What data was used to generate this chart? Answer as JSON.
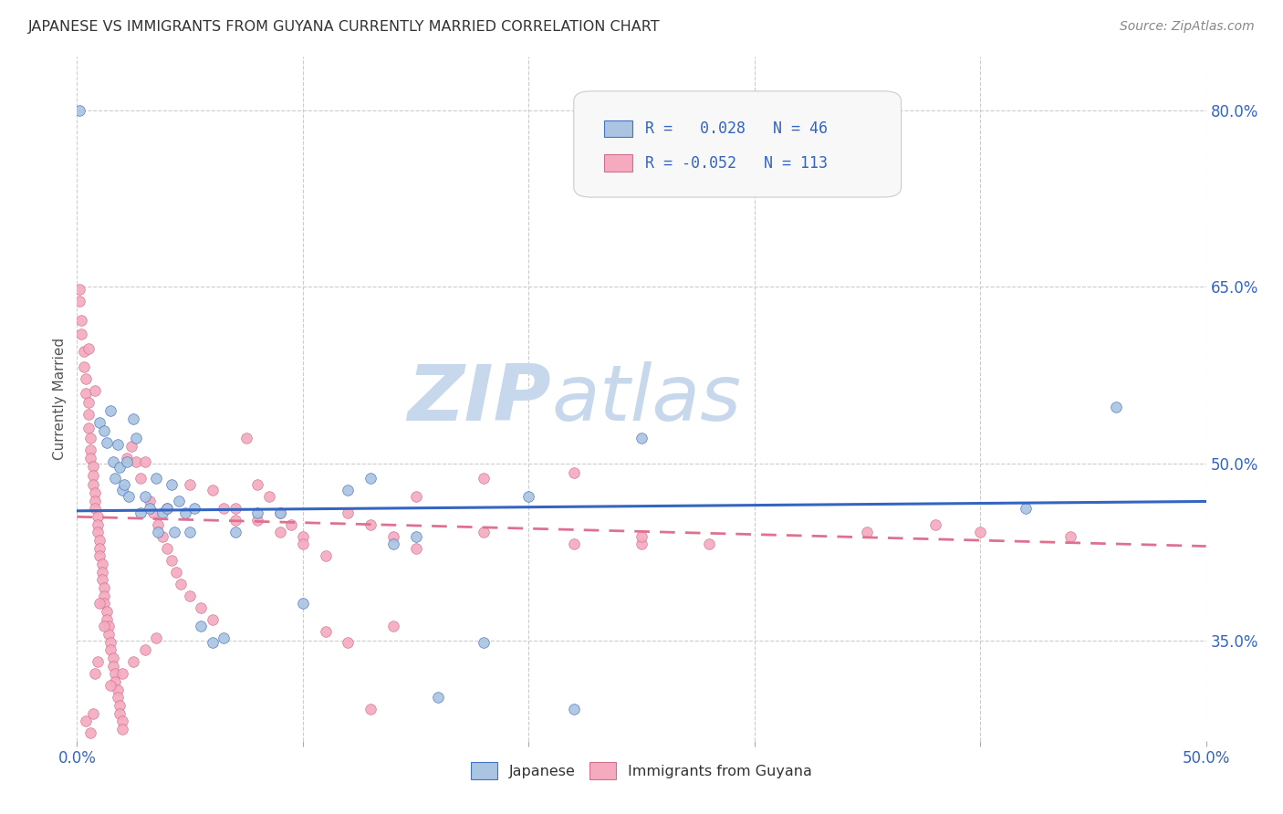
{
  "title": "JAPANESE VS IMMIGRANTS FROM GUYANA CURRENTLY MARRIED CORRELATION CHART",
  "source": "Source: ZipAtlas.com",
  "ylabel": "Currently Married",
  "ylabel_right_labels": [
    "80.0%",
    "65.0%",
    "50.0%",
    "35.0%"
  ],
  "ylabel_right_values": [
    0.8,
    0.65,
    0.5,
    0.35
  ],
  "xlim": [
    0.0,
    0.5
  ],
  "ylim": [
    0.265,
    0.845
  ],
  "legend_r_japanese": " 0.028",
  "legend_n_japanese": "46",
  "legend_r_guyana": "-0.052",
  "legend_n_guyana": "113",
  "japanese_color": "#aac4e2",
  "guyana_color": "#f5aabf",
  "trendline_japanese_color": "#3465c0",
  "trendline_guyana_color": "#e07090",
  "watermark_text_1": "ZIP",
  "watermark_text_2": "atlas",
  "watermark_color": "#c8d8ec",
  "background_color": "#ffffff",
  "grid_color": "#cccccc",
  "japanese_points": [
    [
      0.001,
      0.8
    ],
    [
      0.01,
      0.535
    ],
    [
      0.012,
      0.528
    ],
    [
      0.013,
      0.518
    ],
    [
      0.015,
      0.545
    ],
    [
      0.016,
      0.502
    ],
    [
      0.017,
      0.488
    ],
    [
      0.018,
      0.516
    ],
    [
      0.019,
      0.497
    ],
    [
      0.02,
      0.478
    ],
    [
      0.021,
      0.482
    ],
    [
      0.022,
      0.502
    ],
    [
      0.023,
      0.472
    ],
    [
      0.025,
      0.538
    ],
    [
      0.026,
      0.522
    ],
    [
      0.028,
      0.458
    ],
    [
      0.03,
      0.472
    ],
    [
      0.032,
      0.462
    ],
    [
      0.035,
      0.488
    ],
    [
      0.036,
      0.442
    ],
    [
      0.038,
      0.458
    ],
    [
      0.04,
      0.462
    ],
    [
      0.042,
      0.482
    ],
    [
      0.043,
      0.442
    ],
    [
      0.045,
      0.468
    ],
    [
      0.048,
      0.458
    ],
    [
      0.05,
      0.442
    ],
    [
      0.052,
      0.462
    ],
    [
      0.055,
      0.362
    ],
    [
      0.06,
      0.348
    ],
    [
      0.065,
      0.352
    ],
    [
      0.07,
      0.442
    ],
    [
      0.08,
      0.458
    ],
    [
      0.09,
      0.458
    ],
    [
      0.1,
      0.382
    ],
    [
      0.12,
      0.478
    ],
    [
      0.13,
      0.488
    ],
    [
      0.14,
      0.432
    ],
    [
      0.15,
      0.438
    ],
    [
      0.16,
      0.302
    ],
    [
      0.18,
      0.348
    ],
    [
      0.2,
      0.472
    ],
    [
      0.22,
      0.292
    ],
    [
      0.25,
      0.522
    ],
    [
      0.42,
      0.462
    ],
    [
      0.46,
      0.548
    ]
  ],
  "guyana_points": [
    [
      0.001,
      0.648
    ],
    [
      0.001,
      0.638
    ],
    [
      0.002,
      0.622
    ],
    [
      0.002,
      0.61
    ],
    [
      0.003,
      0.595
    ],
    [
      0.003,
      0.582
    ],
    [
      0.004,
      0.572
    ],
    [
      0.004,
      0.56
    ],
    [
      0.005,
      0.552
    ],
    [
      0.005,
      0.542
    ],
    [
      0.005,
      0.53
    ],
    [
      0.006,
      0.522
    ],
    [
      0.006,
      0.512
    ],
    [
      0.006,
      0.505
    ],
    [
      0.007,
      0.498
    ],
    [
      0.007,
      0.49
    ],
    [
      0.007,
      0.482
    ],
    [
      0.008,
      0.475
    ],
    [
      0.008,
      0.468
    ],
    [
      0.008,
      0.462
    ],
    [
      0.009,
      0.455
    ],
    [
      0.009,
      0.448
    ],
    [
      0.009,
      0.442
    ],
    [
      0.01,
      0.435
    ],
    [
      0.01,
      0.428
    ],
    [
      0.01,
      0.422
    ],
    [
      0.011,
      0.415
    ],
    [
      0.011,
      0.408
    ],
    [
      0.011,
      0.402
    ],
    [
      0.012,
      0.395
    ],
    [
      0.012,
      0.388
    ],
    [
      0.012,
      0.382
    ],
    [
      0.013,
      0.375
    ],
    [
      0.013,
      0.368
    ],
    [
      0.014,
      0.362
    ],
    [
      0.014,
      0.355
    ],
    [
      0.015,
      0.348
    ],
    [
      0.015,
      0.342
    ],
    [
      0.016,
      0.335
    ],
    [
      0.016,
      0.328
    ],
    [
      0.017,
      0.322
    ],
    [
      0.017,
      0.315
    ],
    [
      0.018,
      0.308
    ],
    [
      0.018,
      0.302
    ],
    [
      0.019,
      0.295
    ],
    [
      0.019,
      0.288
    ],
    [
      0.02,
      0.282
    ],
    [
      0.02,
      0.275
    ],
    [
      0.022,
      0.505
    ],
    [
      0.024,
      0.515
    ],
    [
      0.026,
      0.502
    ],
    [
      0.028,
      0.488
    ],
    [
      0.03,
      0.502
    ],
    [
      0.032,
      0.468
    ],
    [
      0.034,
      0.458
    ],
    [
      0.036,
      0.448
    ],
    [
      0.038,
      0.438
    ],
    [
      0.04,
      0.428
    ],
    [
      0.042,
      0.418
    ],
    [
      0.044,
      0.408
    ],
    [
      0.046,
      0.398
    ],
    [
      0.05,
      0.388
    ],
    [
      0.055,
      0.378
    ],
    [
      0.06,
      0.368
    ],
    [
      0.065,
      0.462
    ],
    [
      0.07,
      0.452
    ],
    [
      0.075,
      0.522
    ],
    [
      0.08,
      0.482
    ],
    [
      0.085,
      0.472
    ],
    [
      0.09,
      0.458
    ],
    [
      0.095,
      0.448
    ],
    [
      0.1,
      0.438
    ],
    [
      0.11,
      0.358
    ],
    [
      0.12,
      0.348
    ],
    [
      0.13,
      0.292
    ],
    [
      0.14,
      0.362
    ],
    [
      0.15,
      0.472
    ],
    [
      0.18,
      0.488
    ],
    [
      0.22,
      0.492
    ],
    [
      0.25,
      0.432
    ],
    [
      0.004,
      0.282
    ],
    [
      0.006,
      0.272
    ],
    [
      0.007,
      0.288
    ],
    [
      0.008,
      0.322
    ],
    [
      0.009,
      0.332
    ],
    [
      0.01,
      0.382
    ],
    [
      0.012,
      0.362
    ],
    [
      0.015,
      0.312
    ],
    [
      0.02,
      0.322
    ],
    [
      0.025,
      0.332
    ],
    [
      0.03,
      0.342
    ],
    [
      0.035,
      0.352
    ],
    [
      0.04,
      0.462
    ],
    [
      0.05,
      0.482
    ],
    [
      0.06,
      0.478
    ],
    [
      0.07,
      0.462
    ],
    [
      0.08,
      0.452
    ],
    [
      0.09,
      0.442
    ],
    [
      0.1,
      0.432
    ],
    [
      0.11,
      0.422
    ],
    [
      0.12,
      0.458
    ],
    [
      0.13,
      0.448
    ],
    [
      0.14,
      0.438
    ],
    [
      0.15,
      0.428
    ],
    [
      0.18,
      0.442
    ],
    [
      0.22,
      0.432
    ],
    [
      0.25,
      0.438
    ],
    [
      0.28,
      0.432
    ],
    [
      0.35,
      0.442
    ],
    [
      0.38,
      0.448
    ],
    [
      0.4,
      0.442
    ],
    [
      0.44,
      0.438
    ],
    [
      0.005,
      0.598
    ],
    [
      0.008,
      0.562
    ]
  ],
  "trendline_jp_start": 0.46,
  "trendline_jp_end": 0.468,
  "trendline_gy_start": 0.455,
  "trendline_gy_end": 0.43
}
